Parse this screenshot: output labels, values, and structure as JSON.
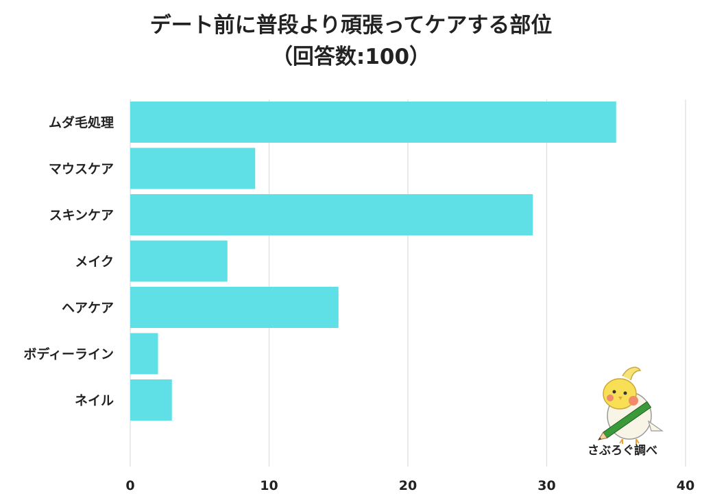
{
  "title_line1": "デート前に普段より頑張ってケアする部位",
  "title_line2": "（回答数:100）",
  "watermark_text": "さぶろぐ調べ",
  "bar_color": "#5ee0e6",
  "chart_data": {
    "type": "bar",
    "orientation": "horizontal",
    "title": "デート前に普段より頑張ってケアする部位（回答数:100）",
    "categories": [
      "ムダ毛処理",
      "マウスケア",
      "スキンケア",
      "メイク",
      "ヘアケア",
      "ボディーライン",
      "ネイル"
    ],
    "values": [
      35,
      9,
      29,
      7,
      15,
      2,
      3
    ],
    "xlim": [
      0,
      40
    ],
    "xticks": [
      0,
      10,
      20,
      30,
      40
    ],
    "xlabel": "",
    "ylabel": "",
    "grid": true
  }
}
